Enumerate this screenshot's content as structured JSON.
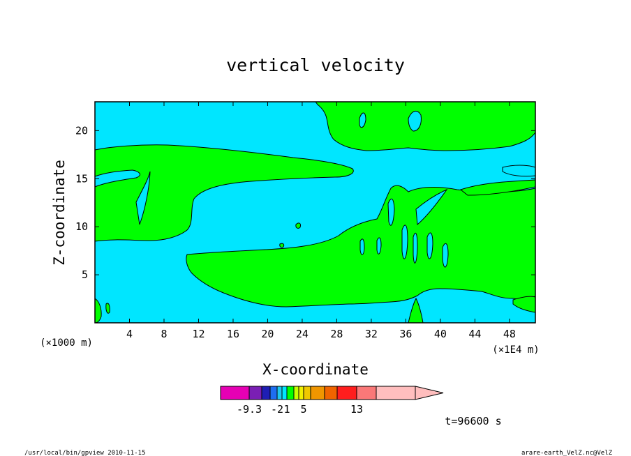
{
  "chart_data": {
    "type": "contour",
    "title": "vertical velocity",
    "xlabel": "X-coordinate",
    "ylabel": "Z-coordinate",
    "x_unit_left": "(×1000 m)",
    "x_unit_right": "(×1E4 m)",
    "xlim": [
      0,
      51
    ],
    "ylim": [
      0,
      23
    ],
    "x_ticks": [
      4,
      8,
      12,
      16,
      20,
      24,
      28,
      32,
      36,
      40,
      44,
      48
    ],
    "y_ticks": [
      5,
      10,
      15,
      20
    ],
    "time_label": "t=96600 s",
    "colorbar": {
      "colors": [
        "#e600b4",
        "#7a1fb4",
        "#1e1eb4",
        "#1e6ef0",
        "#1ec8f0",
        "#00e6ff",
        "#00ff00",
        "#c8ff00",
        "#f0f000",
        "#f0c800",
        "#f09600",
        "#f06400",
        "#ff1e1e",
        "#fa7878",
        "#ffbebe"
      ],
      "tick_labels": [
        "-9.3",
        "-2",
        "1",
        "5",
        "13"
      ],
      "tick_colors": [
        1,
        4,
        6,
        9,
        13
      ]
    },
    "field": {
      "background_color": "#00e6ff",
      "positive_color": "#00ff00"
    }
  },
  "footer": {
    "left": "/usr/local/bin/gpview  2010-11-15",
    "right": "arare-earth_VelZ.nc@VelZ"
  }
}
